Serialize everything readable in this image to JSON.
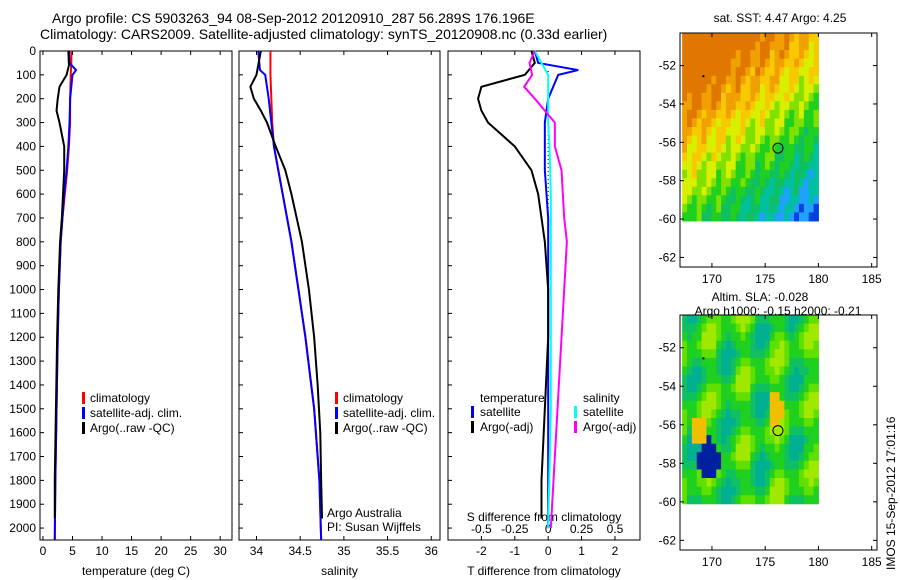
{
  "title": {
    "line1": "Argo profile: CS 5903263_94 08-Sep-2012 20120910_287 56.289S 176.196E",
    "line2": "Climatology: CARS2009. Satellite-adjusted climatology: synTS_20120908.nc (0.33d earlier)"
  },
  "stamp": "IMOS 15-Sep-2012 17:01:16",
  "colors": {
    "clim": "#ff0000",
    "sat": "#0000ff",
    "argo": "#000000",
    "sat_s": "#00ffff",
    "argo_s": "#ff00ff"
  },
  "depth_ticks": [
    0,
    100,
    200,
    300,
    400,
    500,
    600,
    700,
    800,
    900,
    1000,
    1100,
    1200,
    1300,
    1400,
    1500,
    1600,
    1700,
    1800,
    1900,
    2000
  ],
  "chart_data": [
    {
      "type": "line",
      "xlabel": "temperature (deg C)",
      "xticks": [
        0,
        5,
        10,
        15,
        20,
        25,
        30
      ],
      "xlim": [
        -0.5,
        32
      ],
      "ylim": [
        0,
        2050
      ],
      "legend": [
        "climatology",
        "satellite-adj. clim.",
        "Argo(..raw -QC)"
      ],
      "series": [
        {
          "name": "climatology",
          "color": "clim",
          "depth": [
            0,
            50,
            100,
            200,
            300,
            400,
            500,
            600,
            700,
            800,
            1000,
            1200,
            1500,
            1800,
            2050
          ],
          "values": [
            4.8,
            4.8,
            4.7,
            4.6,
            4.6,
            4.4,
            4.1,
            3.7,
            3.3,
            3.0,
            2.7,
            2.5,
            2.3,
            2.1,
            2.0
          ]
        },
        {
          "name": "satellite-adj. clim.",
          "color": "sat",
          "depth": [
            0,
            50,
            80,
            100,
            200,
            300,
            400,
            500,
            600,
            700,
            800,
            1000,
            1200,
            1500,
            1800,
            2050
          ],
          "values": [
            4.4,
            4.5,
            5.6,
            5.0,
            4.6,
            4.5,
            4.3,
            4.0,
            3.6,
            3.3,
            3.0,
            2.7,
            2.5,
            2.3,
            2.1,
            2.0
          ]
        },
        {
          "name": "Argo(..raw -QC)",
          "color": "argo",
          "depth": [
            0,
            60,
            100,
            150,
            200,
            250,
            300,
            400,
            500,
            600,
            700,
            800,
            1000,
            1200,
            1500,
            1800,
            1960
          ],
          "values": [
            4.3,
            4.4,
            4.0,
            2.8,
            2.5,
            2.3,
            2.8,
            3.6,
            3.6,
            3.4,
            3.2,
            2.9,
            2.6,
            2.4,
            2.2,
            2.0,
            2.0
          ]
        }
      ]
    },
    {
      "type": "line",
      "xlabel": "salinity",
      "xticks": [
        34,
        34.5,
        35,
        35.5,
        36
      ],
      "xlim": [
        33.8,
        36.1
      ],
      "ylim": [
        0,
        2050
      ],
      "legend": [
        "climatology",
        "satellite-adj. clim.",
        "Argo(..raw -QC)"
      ],
      "annotation": {
        "line1": "Argo Australia",
        "line2": "PI: Susan Wijffels"
      },
      "series": [
        {
          "name": "climatology",
          "color": "clim",
          "depth": [
            0,
            100,
            200,
            300,
            400,
            500,
            600,
            800,
            1000,
            1200,
            1500,
            1800,
            2050
          ],
          "values": [
            34.16,
            34.16,
            34.17,
            34.18,
            34.2,
            34.25,
            34.3,
            34.4,
            34.48,
            34.56,
            34.66,
            34.72,
            34.74
          ]
        },
        {
          "name": "satellite-adj. clim.",
          "color": "sat",
          "depth": [
            0,
            80,
            100,
            200,
            300,
            400,
            500,
            600,
            800,
            1000,
            1200,
            1500,
            1800,
            2050
          ],
          "values": [
            34.02,
            34.04,
            34.1,
            34.14,
            34.17,
            34.2,
            34.25,
            34.3,
            34.4,
            34.48,
            34.56,
            34.66,
            34.72,
            34.74
          ]
        },
        {
          "name": "Argo(..raw -QC)",
          "color": "argo",
          "depth": [
            0,
            100,
            150,
            200,
            250,
            300,
            400,
            500,
            600,
            800,
            1000,
            1200,
            1400,
            1600,
            1800,
            1960
          ],
          "values": [
            34.05,
            34.0,
            33.93,
            33.97,
            34.05,
            34.12,
            34.22,
            34.33,
            34.4,
            34.52,
            34.6,
            34.66,
            34.7,
            34.73,
            34.74,
            34.75
          ]
        }
      ]
    },
    {
      "type": "line",
      "xlabel": "T difference from climatology",
      "xlabel2": "S difference from climatology",
      "xticks": [
        -2,
        -1,
        0,
        1,
        2
      ],
      "xticks2": [
        -0.5,
        -0.25,
        0,
        0.25,
        0.5
      ],
      "xlim": [
        -3,
        2.75
      ],
      "ylim": [
        0,
        2050
      ],
      "legend_t": {
        "title": "temperature",
        "items": [
          "satellite",
          "Argo(-adj)"
        ]
      },
      "legend_s": {
        "title": "salinity",
        "items": [
          "satellite",
          "Argo(-adj)"
        ]
      },
      "series": [
        {
          "name": "T satellite",
          "color": "sat",
          "depth": [
            0,
            50,
            80,
            100,
            200,
            300,
            400,
            500,
            700,
            1000,
            1500,
            2000
          ],
          "values": [
            -0.4,
            -0.3,
            0.9,
            0.3,
            0.0,
            -0.1,
            -0.1,
            -0.1,
            0.0,
            0.0,
            0.0,
            0.0
          ]
        },
        {
          "name": "T Argo(-adj)",
          "color": "argo",
          "depth": [
            0,
            50,
            100,
            150,
            200,
            250,
            300,
            400,
            500,
            600,
            800,
            1000,
            1200,
            1500,
            1800,
            1960
          ],
          "values": [
            -0.5,
            -0.4,
            -0.7,
            -2.0,
            -2.1,
            -2.0,
            -1.8,
            -1.0,
            -0.5,
            -0.3,
            -0.1,
            0.0,
            0.0,
            -0.1,
            -0.2,
            -0.2
          ]
        },
        {
          "name": "S satellite",
          "color": "sat_s",
          "depth": [
            0,
            50,
            100,
            200,
            300,
            400,
            600,
            800,
            1000,
            1500,
            2000
          ],
          "values": [
            -0.1,
            -0.05,
            0.0,
            0.0,
            0.0,
            0.01,
            0.02,
            0.02,
            0.02,
            0.02,
            0.0
          ]
        },
        {
          "name": "S Argo(-adj)",
          "color": "argo_s",
          "depth": [
            0,
            50,
            100,
            150,
            200,
            300,
            400,
            500,
            700,
            800,
            1000,
            1200,
            1500,
            1800,
            2000
          ],
          "values": [
            -0.1,
            -0.14,
            -0.12,
            -0.18,
            -0.1,
            0.05,
            0.05,
            0.1,
            0.12,
            0.14,
            0.12,
            0.1,
            0.07,
            0.04,
            0.02
          ]
        }
      ]
    },
    {
      "type": "heatmap",
      "title": "sat. SST: 4.47 Argo: 4.25",
      "xticks": [
        170,
        175,
        180,
        185
      ],
      "yticks": [
        -52,
        -54,
        -56,
        -58,
        -60,
        -62
      ],
      "xlim": [
        167,
        185.5
      ],
      "ylim": [
        -62.5,
        -50.3
      ],
      "argo_position": [
        176.2,
        -56.3
      ]
    },
    {
      "type": "heatmap",
      "title": "Altim. SLA: -0.028",
      "title2": "Argo h1000: -0.15 h2000: -0.21",
      "xticks": [
        170,
        175,
        180,
        185
      ],
      "yticks": [
        -52,
        -54,
        -56,
        -58,
        -60,
        -62
      ],
      "xlim": [
        167,
        185.5
      ],
      "ylim": [
        -62.5,
        -50.3
      ],
      "argo_position": [
        176.2,
        -56.3
      ]
    }
  ]
}
